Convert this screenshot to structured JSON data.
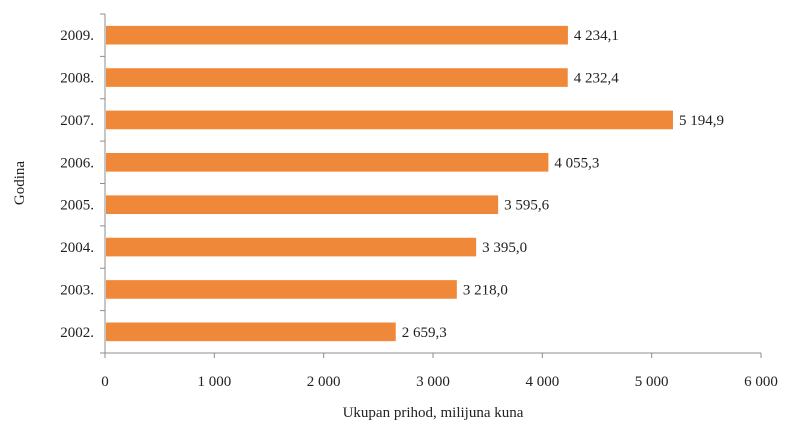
{
  "chart_data": {
    "type": "bar",
    "orientation": "horizontal",
    "categories": [
      "2009.",
      "2008.",
      "2007.",
      "2006.",
      "2005.",
      "2004.",
      "2003.",
      "2002."
    ],
    "values": [
      4234.1,
      4232.4,
      5194.9,
      4055.3,
      3595.6,
      3395.0,
      3218.0,
      2659.3
    ],
    "value_labels": [
      "4 234,1",
      "4 232,4",
      "5 194,9",
      "4 055,3",
      "3 595,6",
      "3 395,0",
      "3 218,0",
      "2 659,3"
    ],
    "xlabel": "Ukupan prihod, milijuna kuna",
    "ylabel": "Godina",
    "xlim": [
      0,
      6000
    ],
    "x_ticks": [
      0,
      1000,
      2000,
      3000,
      4000,
      5000,
      6000
    ],
    "x_tick_labels": [
      "0",
      "1 000",
      "2 000",
      "3 000",
      "4 000",
      "5 000",
      "6 000"
    ],
    "grid": false,
    "legend": "none",
    "bar_color": "#f0883a"
  }
}
